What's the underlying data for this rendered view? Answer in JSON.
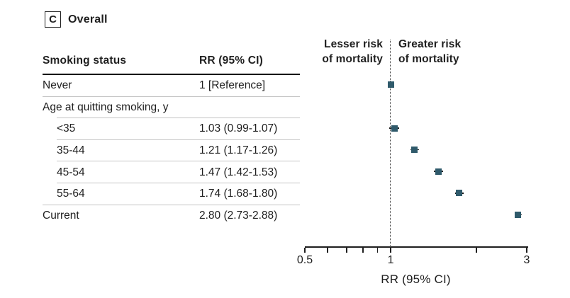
{
  "panel": {
    "label": "C",
    "title": "Overall"
  },
  "table": {
    "columns": [
      "Smoking status",
      "RR (95% CI)"
    ],
    "rows": [
      {
        "label": "Never",
        "value": "1 [Reference]",
        "indent": false,
        "separator": "full"
      },
      {
        "label": "Age at quitting smoking, y",
        "value": "",
        "indent": false,
        "separator": "indent"
      },
      {
        "label": "<35",
        "value": "1.03 (0.99-1.07)",
        "indent": true,
        "separator": "indent"
      },
      {
        "label": "35-44",
        "value": "1.21 (1.17-1.26)",
        "indent": true,
        "separator": "indent"
      },
      {
        "label": "45-54",
        "value": "1.47 (1.42-1.53)",
        "indent": true,
        "separator": "indent"
      },
      {
        "label": "55-64",
        "value": "1.74 (1.68-1.80)",
        "indent": true,
        "separator": "full"
      },
      {
        "label": "Current",
        "value": "2.80 (2.73-2.88)",
        "indent": false,
        "separator": "none"
      }
    ]
  },
  "plot_annotations": {
    "left_label": [
      "Lesser risk",
      "of mortality"
    ],
    "right_label": [
      "Greater risk",
      "of mortality"
    ]
  },
  "chart_data": {
    "type": "scatter",
    "subtype": "forest-plot",
    "x_scale": "log",
    "xlim": [
      0.5,
      3
    ],
    "xlabel": "RR (95% CI)",
    "x_ticks": [
      0.5,
      0.6,
      0.7,
      0.8,
      0.9,
      1,
      2,
      3
    ],
    "x_tick_labels": [
      {
        "value": 0.5,
        "text": "0.5"
      },
      {
        "value": 1,
        "text": "1"
      },
      {
        "value": 3,
        "text": "3"
      }
    ],
    "reference_line": 1,
    "legend": false,
    "points": [
      {
        "label": "Never",
        "rr": 1.0,
        "ci_low": 1.0,
        "ci_high": 1.0
      },
      {
        "label": "<35",
        "rr": 1.03,
        "ci_low": 0.99,
        "ci_high": 1.07
      },
      {
        "label": "35-44",
        "rr": 1.21,
        "ci_low": 1.17,
        "ci_high": 1.26
      },
      {
        "label": "45-54",
        "rr": 1.47,
        "ci_low": 1.42,
        "ci_high": 1.53
      },
      {
        "label": "55-64",
        "rr": 1.74,
        "ci_low": 1.68,
        "ci_high": 1.8
      },
      {
        "label": "Current",
        "rr": 2.8,
        "ci_low": 2.73,
        "ci_high": 2.88
      }
    ]
  },
  "colors": {
    "marker": "#2f5a6b",
    "text": "#1f1f1f",
    "separator": "#c4c4c4",
    "axis": "#1f1f1f",
    "reference_line": "#3c3c3c"
  }
}
